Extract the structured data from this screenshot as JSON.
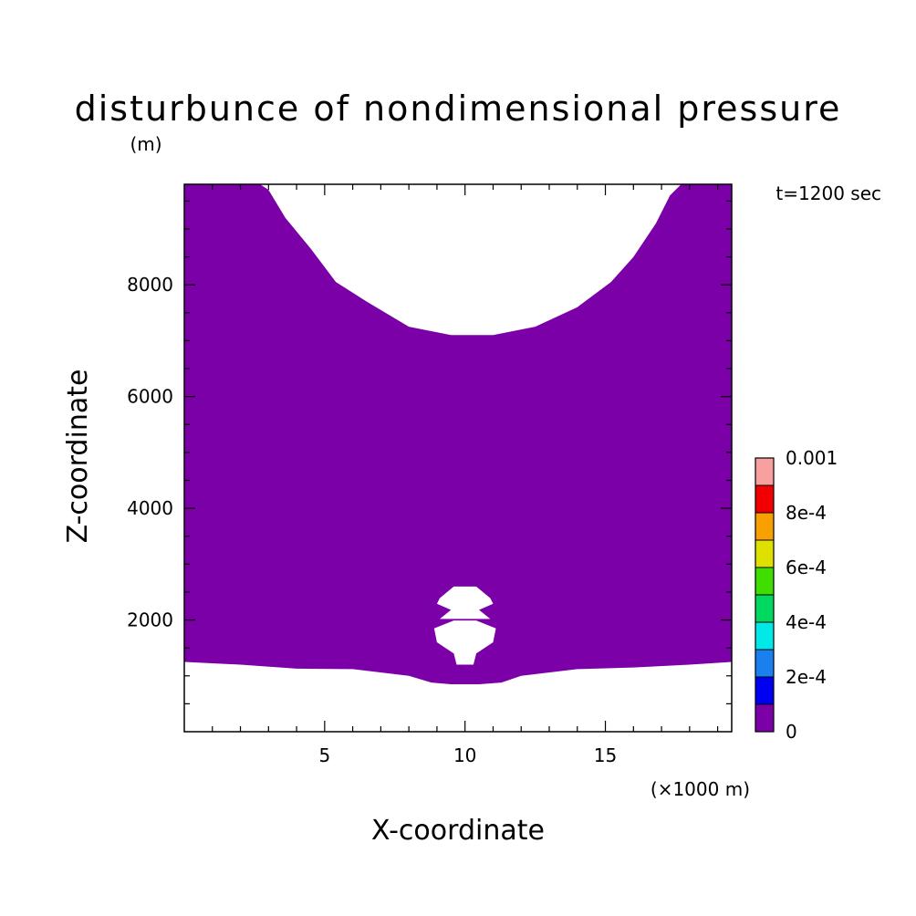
{
  "chart_data": {
    "type": "heatmap",
    "title": "disturbunce of nondimensional pressure",
    "y_unit": "(m)",
    "x_unit": "(×1000 m)",
    "time_label": "t=1200 sec",
    "xlabel": "X-coordinate",
    "ylabel": "Z-coordinate",
    "xlim": [
      0,
      19.5
    ],
    "ylim": [
      0,
      9800
    ],
    "x_ticks": [
      5,
      10,
      15
    ],
    "y_ticks": [
      2000,
      4000,
      6000,
      8000
    ],
    "x_tick_labels": [
      "5",
      "10",
      "15"
    ],
    "y_tick_labels": [
      "2000",
      "4000",
      "6000",
      "8000"
    ],
    "fill_color": "#7b00a8",
    "filled_level_range": [
      0,
      0.0001
    ],
    "upper_clear_boundary": {
      "x": [
        2.7,
        3.0,
        3.6,
        4.5,
        5.4,
        6.5,
        8.0,
        9.5,
        11.0,
        12.5,
        14.0,
        15.2,
        16.0,
        16.8,
        17.3,
        17.7
      ],
      "z": [
        9800,
        9700,
        9200,
        8650,
        8050,
        7700,
        7250,
        7100,
        7100,
        7250,
        7600,
        8050,
        8500,
        9100,
        9600,
        9800
      ]
    },
    "lower_clear_boundary": {
      "x": [
        0,
        2.0,
        4.0,
        6.0,
        8.0,
        8.8,
        9.5,
        10.5,
        11.3,
        12.0,
        14.0,
        16.0,
        18.0,
        19.5
      ],
      "z": [
        1250,
        1200,
        1130,
        1120,
        1000,
        880,
        850,
        850,
        880,
        1000,
        1120,
        1150,
        1200,
        1250
      ]
    },
    "clear_patches": [
      {
        "x": [
          9.1,
          9.6,
          10.4,
          10.9,
          11.0,
          10.5,
          10.9,
          9.1,
          9.5,
          9.0
        ],
        "z": [
          2390,
          2600,
          2600,
          2390,
          2290,
          2180,
          2020,
          2020,
          2180,
          2290
        ]
      },
      {
        "x": [
          8.9,
          9.6,
          10.4,
          11.1,
          11.0,
          10.4,
          10.3,
          9.7,
          9.6,
          9.0
        ],
        "z": [
          1850,
          1990,
          1990,
          1850,
          1600,
          1400,
          1200,
          1200,
          1400,
          1600
        ]
      }
    ],
    "colorbar": {
      "levels": [
        0,
        0.0001,
        0.0002,
        0.0003,
        0.0004,
        0.0005,
        0.0006,
        0.0007,
        0.0008,
        0.0009,
        0.001
      ],
      "colors": [
        "#7b00a8",
        "#0000f0",
        "#1a80f0",
        "#00e8e8",
        "#00d860",
        "#40dd00",
        "#e0e000",
        "#f8a000",
        "#f00000",
        "#f8a0a0"
      ],
      "tick_values": [
        0,
        0.0002,
        0.0004,
        0.0006,
        0.0008,
        0.001
      ],
      "tick_labels": [
        "0",
        "2e-4",
        "4e-4",
        "6e-4",
        "8e-4",
        "0.001"
      ]
    }
  }
}
